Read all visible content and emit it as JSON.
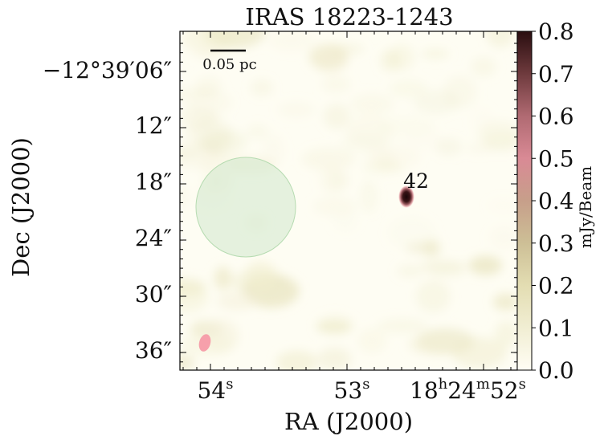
{
  "chart_data": {
    "type": "heatmap",
    "title": "IRAS 18223-1243",
    "xlabel": "RA (J2000)",
    "ylabel": "Dec (J2000)",
    "x_ticks": [
      {
        "label": "54",
        "sup": "s"
      },
      {
        "label": "53",
        "sup": "s"
      },
      {
        "label": "18",
        "sup": "h",
        "label2": "24",
        "sup2": "m",
        "label3": "52",
        "sup3": "s"
      }
    ],
    "y_ticks": [
      "−12°39′06″",
      "12″",
      "18″",
      "24″",
      "30″",
      "36″"
    ],
    "colorbar": {
      "label": "mJy/Beam",
      "range": [
        0.0,
        0.8
      ],
      "ticks": [
        "0.0",
        "0.1",
        "0.2",
        "0.3",
        "0.4",
        "0.5",
        "0.6",
        "0.7",
        "0.8"
      ],
      "colors": [
        "#fffdf4",
        "#f1eed3",
        "#e3ddb2",
        "#cdbf96",
        "#c79f8a",
        "#d98a95",
        "#b06a72",
        "#6e3a3d",
        "#2a0e10"
      ]
    },
    "scalebar_label": "0.05 pc",
    "sources": [
      {
        "label": "42",
        "peak_mJy_per_beam": 0.8
      }
    ],
    "overlays": [
      "green circle (field of view)",
      "pink ellipse (beam)"
    ]
  }
}
